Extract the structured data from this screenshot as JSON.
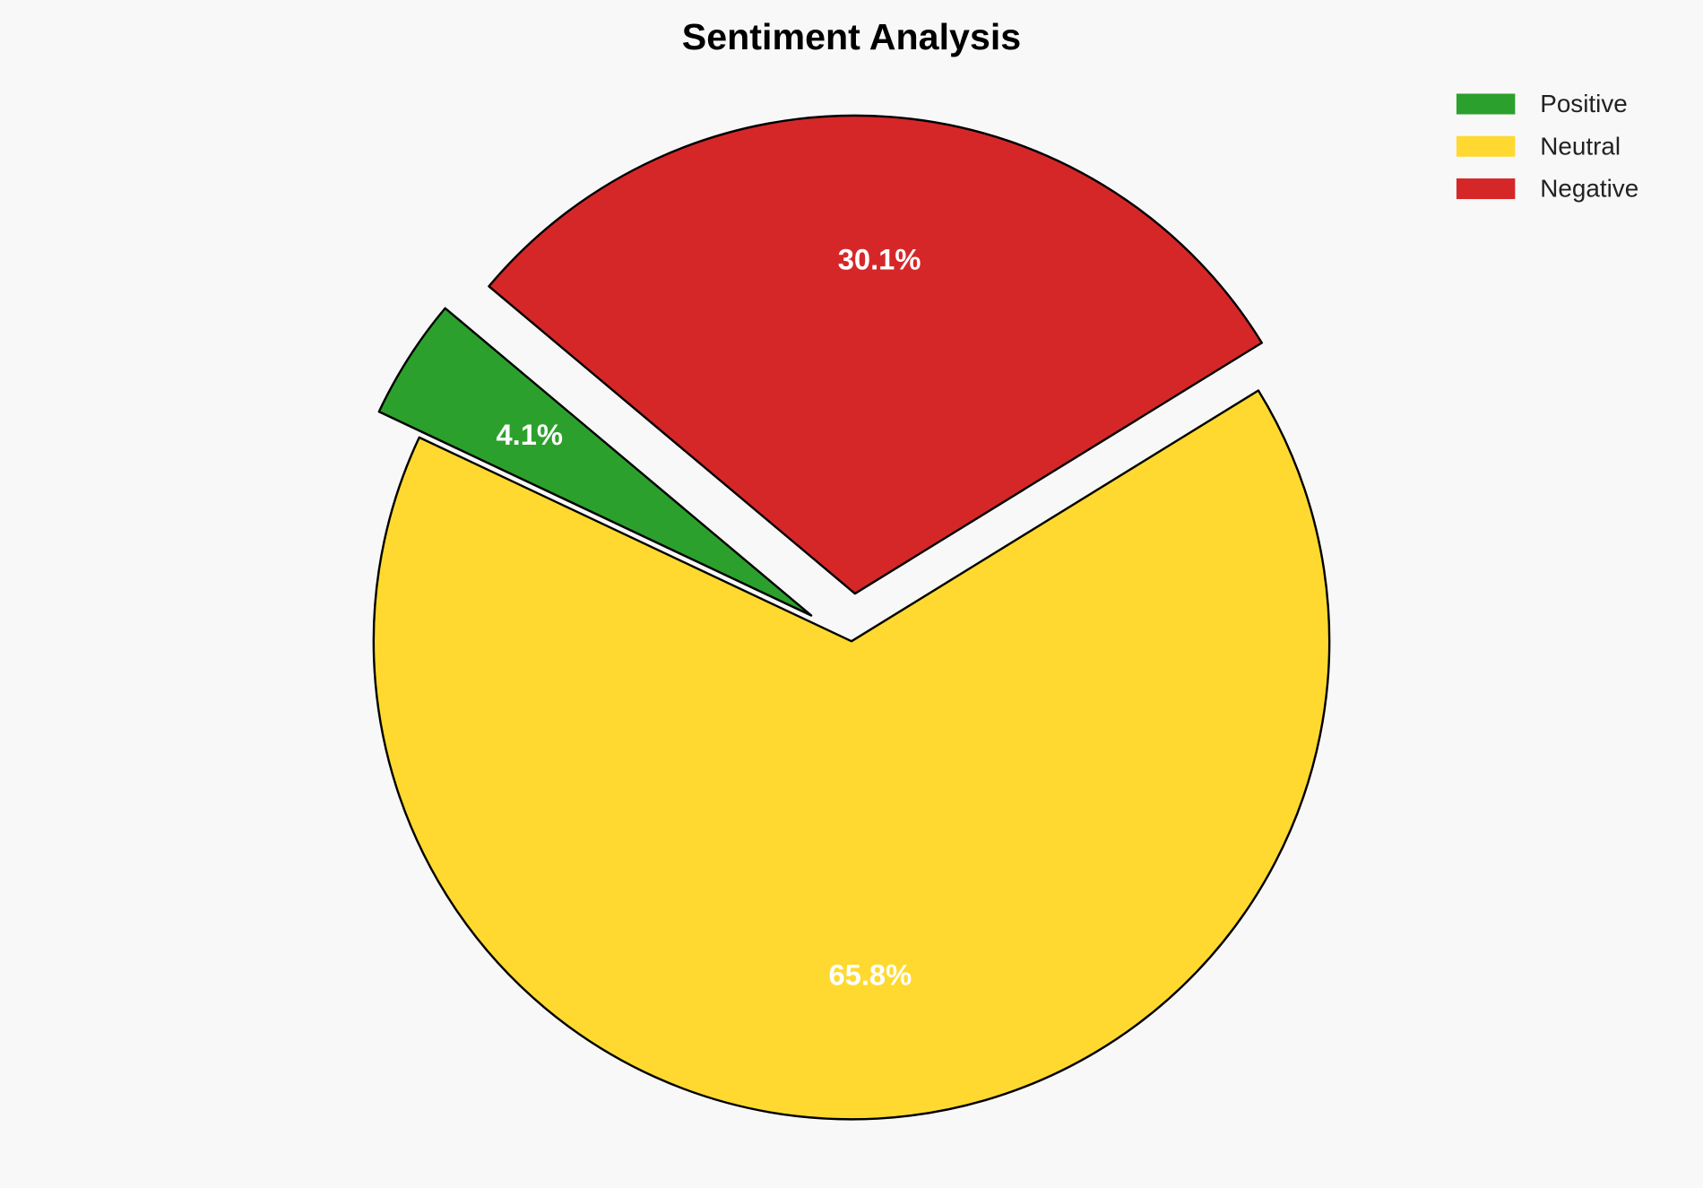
{
  "chart_data": {
    "type": "pie",
    "title": "Sentiment Analysis",
    "categories": [
      "Positive",
      "Neutral",
      "Negative"
    ],
    "values": [
      4.1,
      65.8,
      30.1
    ],
    "labels": [
      "4.1%",
      "65.8%",
      "30.1%"
    ],
    "colors": [
      "#2ca02c",
      "#ffd92f",
      "#d62728"
    ],
    "explode": [
      0.1,
      0,
      0.1
    ],
    "start_angle": 140,
    "direction": "counterclockwise",
    "legend_position": "top-right",
    "edge_color": "#000000",
    "background": "#f8f8f8"
  }
}
